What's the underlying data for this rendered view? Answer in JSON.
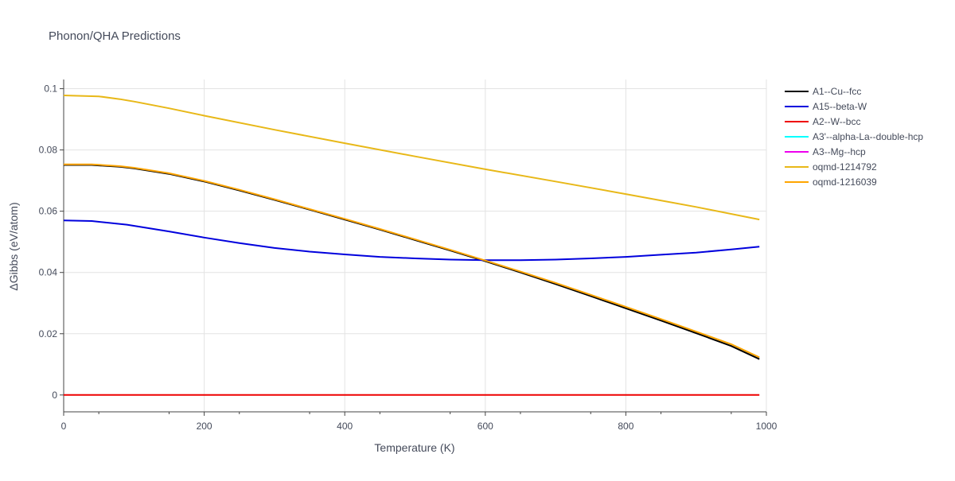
{
  "chart_data": {
    "type": "line",
    "title": "Phonon/QHA Predictions",
    "xlabel": "Temperature (K)",
    "ylabel": "ΔGibbs (eV/atom)",
    "xlim": [
      0,
      1000
    ],
    "ylim": [
      -0.0055,
      0.103
    ],
    "x_ticks": [
      0,
      200,
      400,
      600,
      800,
      1000
    ],
    "x_tick_labels": [
      "0",
      "200",
      "400",
      "600",
      "800",
      "1000"
    ],
    "y_ticks": [
      0,
      0.02,
      0.04,
      0.06,
      0.08,
      0.1
    ],
    "y_tick_labels": [
      "0",
      "0.02",
      "0.04",
      "0.06",
      "0.08",
      "0.1"
    ],
    "grid": true,
    "legend_position": "right",
    "series": [
      {
        "name": "A1--Cu--fcc",
        "color": "#000000",
        "points": [
          [
            0,
            0.0751
          ],
          [
            40,
            0.0751
          ],
          [
            80,
            0.0745
          ],
          [
            100,
            0.074
          ],
          [
            150,
            0.0722
          ],
          [
            200,
            0.0697
          ],
          [
            250,
            0.0668
          ],
          [
            300,
            0.0637
          ],
          [
            350,
            0.0605
          ],
          [
            400,
            0.0573
          ],
          [
            450,
            0.054
          ],
          [
            500,
            0.0506
          ],
          [
            550,
            0.0472
          ],
          [
            600,
            0.0437
          ],
          [
            650,
            0.04
          ],
          [
            700,
            0.0362
          ],
          [
            750,
            0.0323
          ],
          [
            800,
            0.0283
          ],
          [
            850,
            0.0243
          ],
          [
            900,
            0.0202
          ],
          [
            950,
            0.016
          ],
          [
            990,
            0.0117
          ]
        ]
      },
      {
        "name": "A15--beta-W",
        "color": "#0000dd",
        "points": [
          [
            0,
            0.057
          ],
          [
            40,
            0.0568
          ],
          [
            90,
            0.0556
          ],
          [
            150,
            0.0534
          ],
          [
            200,
            0.0514
          ],
          [
            250,
            0.0496
          ],
          [
            300,
            0.048
          ],
          [
            350,
            0.0468
          ],
          [
            400,
            0.0459
          ],
          [
            450,
            0.0451
          ],
          [
            500,
            0.0446
          ],
          [
            550,
            0.0442
          ],
          [
            600,
            0.044
          ],
          [
            650,
            0.044
          ],
          [
            700,
            0.0442
          ],
          [
            750,
            0.0446
          ],
          [
            800,
            0.0451
          ],
          [
            850,
            0.0458
          ],
          [
            900,
            0.0465
          ],
          [
            950,
            0.0475
          ],
          [
            990,
            0.0484
          ]
        ]
      },
      {
        "name": "A2--W--bcc",
        "color": "#ee0000",
        "points": [
          [
            0,
            0.0
          ],
          [
            200,
            0.0
          ],
          [
            400,
            0.0
          ],
          [
            600,
            0.0
          ],
          [
            800,
            0.0
          ],
          [
            990,
            0.0
          ]
        ]
      },
      {
        "name": "A3'--alpha-La--double-hcp",
        "color": "#00ffff",
        "points": []
      },
      {
        "name": "A3--Mg--hcp",
        "color": "#ee00ee",
        "points": []
      },
      {
        "name": "oqmd-1214792",
        "color": "#e8b818",
        "points": [
          [
            0,
            0.0978
          ],
          [
            50,
            0.0975
          ],
          [
            80,
            0.0966
          ],
          [
            100,
            0.0958
          ],
          [
            150,
            0.0936
          ],
          [
            200,
            0.0912
          ],
          [
            300,
            0.0866
          ],
          [
            400,
            0.0822
          ],
          [
            500,
            0.0779
          ],
          [
            600,
            0.0737
          ],
          [
            700,
            0.0697
          ],
          [
            800,
            0.0656
          ],
          [
            900,
            0.0614
          ],
          [
            990,
            0.0573
          ]
        ]
      },
      {
        "name": "oqmd-1216039",
        "color": "#ffa500",
        "points": [
          [
            0,
            0.0753
          ],
          [
            40,
            0.0753
          ],
          [
            80,
            0.0747
          ],
          [
            100,
            0.0742
          ],
          [
            150,
            0.0724
          ],
          [
            200,
            0.0699
          ],
          [
            250,
            0.067
          ],
          [
            300,
            0.0639
          ],
          [
            350,
            0.0607
          ],
          [
            400,
            0.0575
          ],
          [
            450,
            0.0542
          ],
          [
            500,
            0.0508
          ],
          [
            550,
            0.0474
          ],
          [
            600,
            0.0439
          ],
          [
            650,
            0.0403
          ],
          [
            700,
            0.0366
          ],
          [
            750,
            0.0327
          ],
          [
            800,
            0.0288
          ],
          [
            850,
            0.0248
          ],
          [
            900,
            0.0207
          ],
          [
            950,
            0.0166
          ],
          [
            990,
            0.0123
          ]
        ]
      }
    ]
  }
}
